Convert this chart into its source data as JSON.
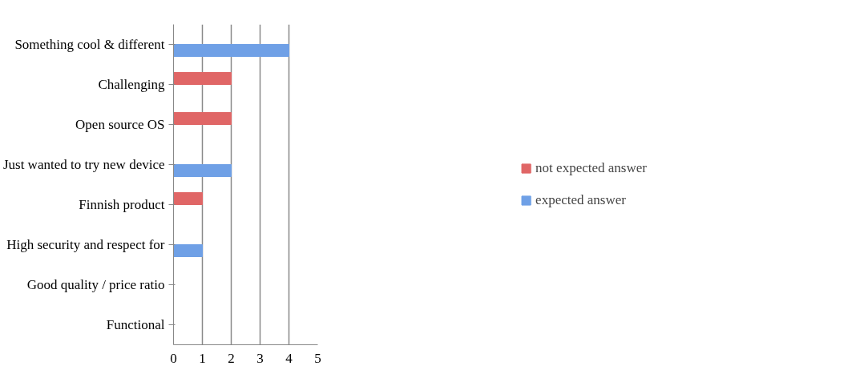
{
  "chart_data": {
    "type": "bar",
    "orientation": "horizontal",
    "categories": [
      "Something cool & different",
      "Challenging",
      "Open source OS",
      "Just wanted to try new device",
      "Finnish product",
      "High security and respect for",
      "Good quality / price ratio",
      "Functional"
    ],
    "series": [
      {
        "name": "not expected answer",
        "color": "#e06666",
        "values": [
          null,
          2,
          2,
          null,
          1,
          null,
          null,
          null
        ]
      },
      {
        "name": "expected answer",
        "color": "#6fa0e6",
        "values": [
          4,
          null,
          null,
          2,
          null,
          1,
          null,
          null
        ]
      }
    ],
    "xlim": [
      0,
      5
    ],
    "xticks": [
      0,
      1,
      2,
      3,
      4,
      5
    ],
    "grid": "x",
    "legend": "right"
  }
}
